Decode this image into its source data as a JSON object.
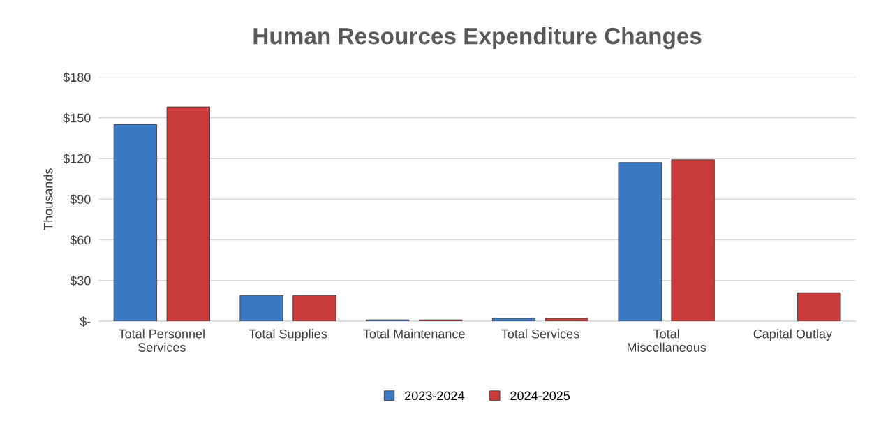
{
  "chart_data": {
    "type": "bar",
    "title": "Human Resources Expenditure Changes",
    "ylabel": "Thousands",
    "categories": [
      "Total Personnel\nServices",
      "Total Supplies",
      "Total Maintenance",
      "Total Services",
      "Total\nMiscellaneous",
      "Capital Outlay"
    ],
    "series": [
      {
        "name": "2023-2024",
        "color": "#3a78c4",
        "values": [
          145,
          19,
          1,
          2,
          117,
          null
        ]
      },
      {
        "name": "2024-2025",
        "color": "#c93b3b",
        "values": [
          158,
          19,
          1,
          2,
          119,
          21
        ]
      }
    ],
    "ylim": [
      0,
      180
    ],
    "yticks": [
      {
        "value": 0,
        "label": "$-"
      },
      {
        "value": 30,
        "label": "$30"
      },
      {
        "value": 60,
        "label": "$60"
      },
      {
        "value": 90,
        "label": "$90"
      },
      {
        "value": 120,
        "label": "$120"
      },
      {
        "value": 150,
        "label": "$150"
      },
      {
        "value": 180,
        "label": "$180"
      }
    ],
    "grid": "y",
    "legend": "bottom"
  }
}
